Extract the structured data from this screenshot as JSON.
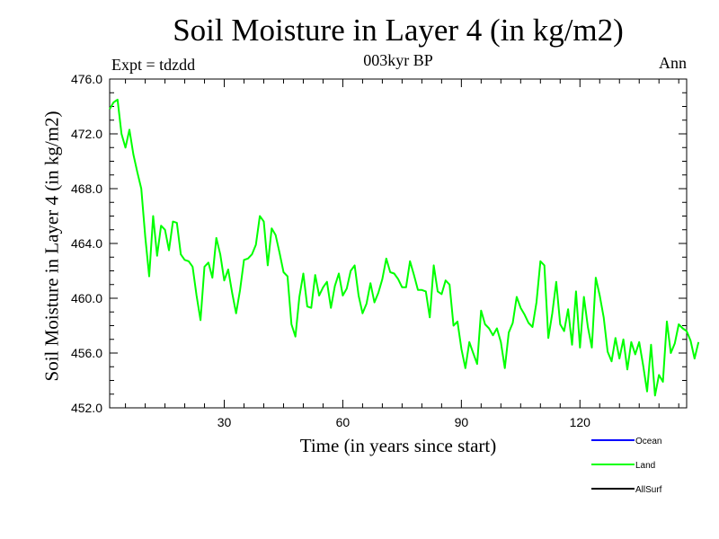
{
  "chart_data": {
    "type": "line",
    "title": "Soil Moisture in Layer 4 (in kg/m2)",
    "subtitle": "003kyr BP",
    "experiment_label": "Expt = tdzdd",
    "season_label": "Ann",
    "xlabel": "Time (in years since start)",
    "ylabel": "Soil Moisture in Layer 4 (in kg/m2)",
    "xlim": [
      1,
      147
    ],
    "ylim": [
      452,
      476
    ],
    "x_ticks": [
      30,
      60,
      90,
      120
    ],
    "x_tick_labels": [
      "30",
      "60",
      "90",
      "120"
    ],
    "y_ticks": [
      452,
      456,
      460,
      464,
      468,
      472,
      476
    ],
    "y_tick_labels": [
      "452.0",
      "456.0",
      "460.0",
      "464.0",
      "468.0",
      "472.0",
      "476.0"
    ],
    "legend": [
      {
        "name": "Ocean",
        "color": "#0000ff"
      },
      {
        "name": "Land",
        "color": "#00ff00"
      },
      {
        "name": "AllSurf",
        "color": "#000000"
      }
    ],
    "series": [
      {
        "name": "Land",
        "color": "#00ff00",
        "x_start": 1,
        "values": [
          473.8,
          474.3,
          474.5,
          472.0,
          471.0,
          472.3,
          470.5,
          469.2,
          468.0,
          464.5,
          461.6,
          466.0,
          463.1,
          465.3,
          465.0,
          463.5,
          465.6,
          465.5,
          463.2,
          462.8,
          462.7,
          462.3,
          460.2,
          458.4,
          462.3,
          462.6,
          461.5,
          464.4,
          463.2,
          461.3,
          462.1,
          460.4,
          458.9,
          460.6,
          462.8,
          462.9,
          463.2,
          463.9,
          466.0,
          465.6,
          462.4,
          465.1,
          464.6,
          463.3,
          461.9,
          461.6,
          458.1,
          457.2,
          460.1,
          461.8,
          459.4,
          459.3,
          461.7,
          460.2,
          460.8,
          461.2,
          459.3,
          460.9,
          461.8,
          460.2,
          460.7,
          462.0,
          462.4,
          460.2,
          458.9,
          459.6,
          461.1,
          459.7,
          460.4,
          461.4,
          462.9,
          461.9,
          461.8,
          461.4,
          460.8,
          460.8,
          462.7,
          461.7,
          460.6,
          460.6,
          460.5,
          458.6,
          462.4,
          460.5,
          460.3,
          461.3,
          461.0,
          458.0,
          458.3,
          456.3,
          454.9,
          456.8,
          456.0,
          455.2,
          459.1,
          458.1,
          457.8,
          457.3,
          457.8,
          456.8,
          454.9,
          457.5,
          458.2,
          460.1,
          459.3,
          458.8,
          458.2,
          457.9,
          459.7,
          462.7,
          462.4,
          457.1,
          458.9,
          461.2,
          458.1,
          457.6,
          459.2,
          456.6,
          460.5,
          456.4,
          460.1,
          457.9,
          456.4,
          461.5,
          460.2,
          458.6,
          456.1,
          455.4,
          457.1,
          455.6,
          457.0,
          454.8,
          456.8,
          455.9,
          456.8,
          455.1,
          453.2,
          456.6,
          452.9,
          454.4,
          453.9,
          458.3,
          456.0,
          456.7,
          458.1,
          457.8,
          457.6,
          456.9,
          455.6,
          456.8
        ]
      }
    ]
  }
}
